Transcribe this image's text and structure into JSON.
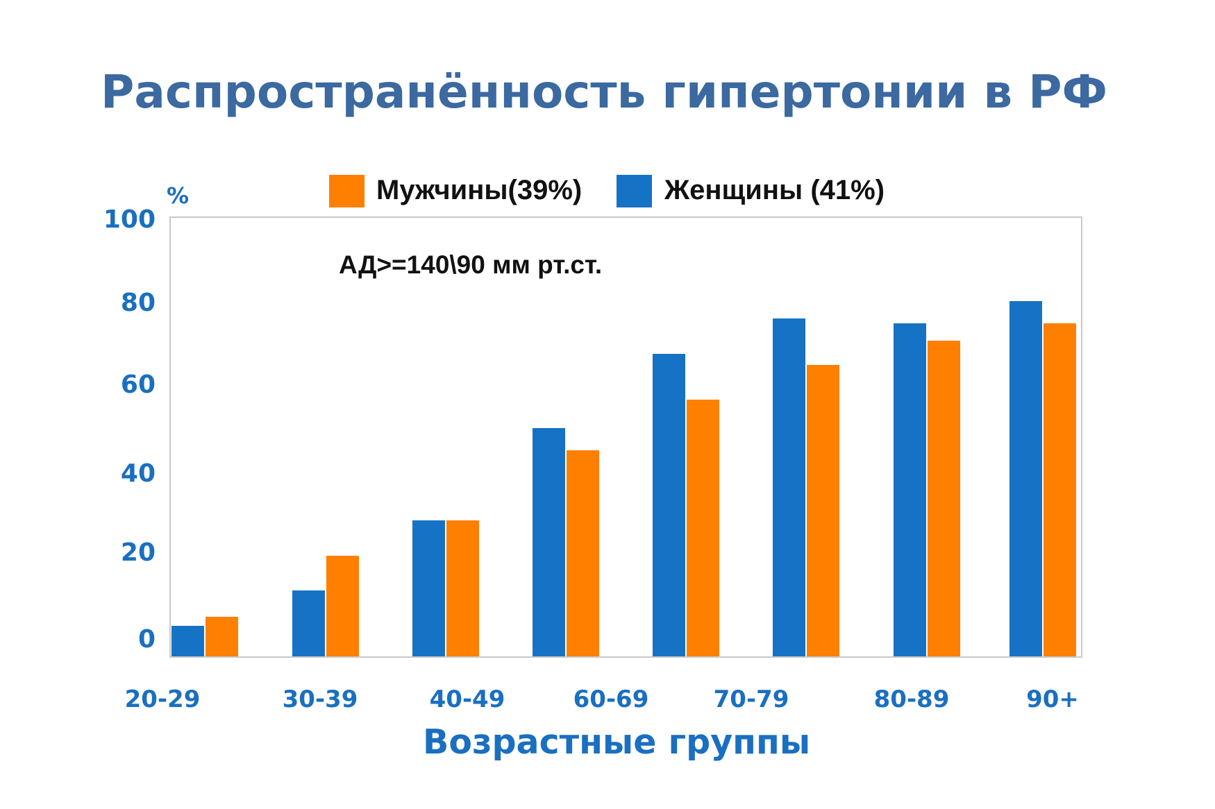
{
  "title": "Распространённость  гипертонии в РФ",
  "legend": {
    "men": {
      "label": "Мужчины(39%)",
      "color": "#ff7f00"
    },
    "women": {
      "label": "Женщины (41%)",
      "color": "#1672c4"
    }
  },
  "y_axis": {
    "unit": "%",
    "ticks": [
      "100",
      "80",
      "60",
      "40",
      "20",
      "0"
    ]
  },
  "annotation": "АД>=140\\90 мм рт.ст.",
  "x_axis": {
    "title": "Возрастные группы",
    "ticks": [
      "20-29",
      "30-39",
      "40-49",
      "60-69",
      "70-79",
      "80-89",
      "90+"
    ]
  },
  "colors": {
    "title": "#3b69a0",
    "axis_text": "#1a6fc0",
    "women_bar": "#1672c4",
    "men_bar": "#ff7f00",
    "frame": "#c9c9c9"
  },
  "chart_data": {
    "type": "bar",
    "title": "Распространённость  гипертонии в РФ",
    "subtitle": "АД>=140\\90 мм рт.ст.",
    "xlabel": "Возрастные группы",
    "ylabel": "%",
    "ylim": [
      0,
      100
    ],
    "y_ticks": [
      0,
      20,
      40,
      60,
      80,
      100
    ],
    "grid": false,
    "legend_position": "top",
    "categories": [
      "20-29",
      "30-39",
      "40-49",
      "60-69",
      "70-79",
      "80-89",
      "90+"
    ],
    "note": "8 bar groups are drawn but only 7 category tick labels are shown",
    "bar_groups": 8,
    "series": [
      {
        "name": "Женщины (41%)",
        "color": "#1672c4",
        "values": [
          7,
          15,
          31,
          52,
          69,
          77,
          76,
          81
        ]
      },
      {
        "name": "Мужчины(39%)",
        "color": "#ff7f00",
        "values": [
          9,
          23,
          31,
          47,
          58.5,
          66.5,
          72,
          76
        ]
      }
    ]
  }
}
